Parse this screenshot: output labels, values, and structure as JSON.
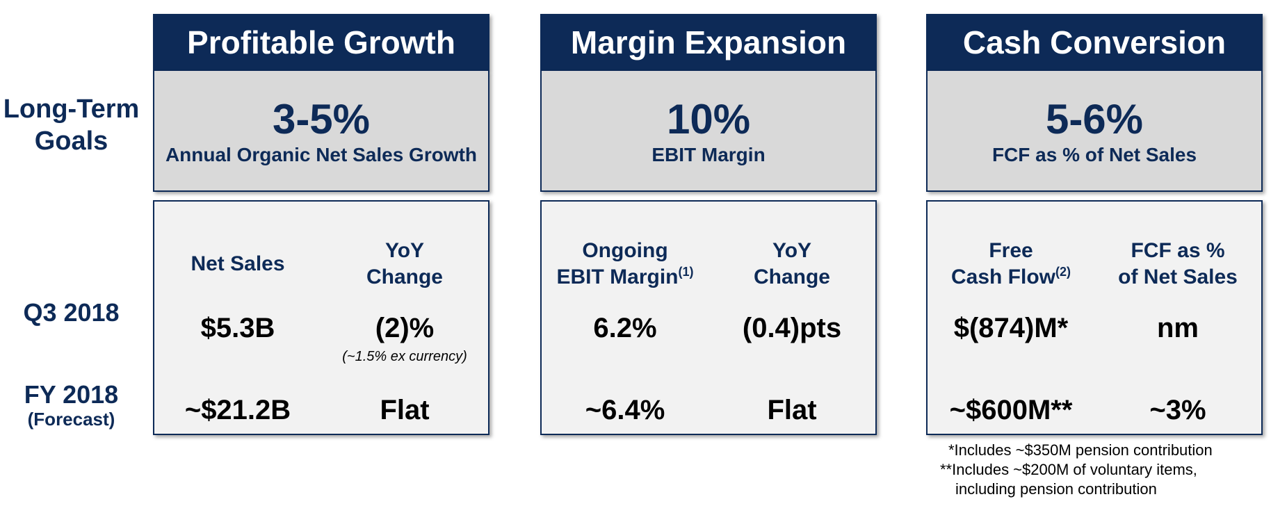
{
  "row_labels": {
    "long_term_line1": "Long-Term",
    "long_term_line2": "Goals",
    "q3": "Q3 2018",
    "fy": "FY 2018",
    "fy_sub": "(Forecast)"
  },
  "pillars": [
    {
      "title": "Profitable Growth",
      "goal_value": "3-5%",
      "goal_desc": "Annual Organic Net Sales Growth",
      "col1_head": [
        "Net Sales"
      ],
      "col1_sup": "",
      "col2_head": [
        "YoY",
        "Change"
      ],
      "col2_sup": "",
      "q3_col1": "$5.3B",
      "q3_col2": "(2)%",
      "q3_col2_note": "(~1.5% ex currency)",
      "fy_col1": "~$21.2B",
      "fy_col2": "Flat"
    },
    {
      "title": "Margin Expansion",
      "goal_value": "10%",
      "goal_desc": "EBIT Margin",
      "col1_head": [
        "Ongoing",
        "EBIT Margin"
      ],
      "col1_sup": "(1)",
      "col2_head": [
        "YoY",
        "Change"
      ],
      "col2_sup": "",
      "q3_col1": "6.2%",
      "q3_col2": "(0.4)pts",
      "q3_col2_note": "",
      "fy_col1": "~6.4%",
      "fy_col2": "Flat"
    },
    {
      "title": "Cash Conversion",
      "goal_value": "5-6%",
      "goal_desc": "FCF as % of Net Sales",
      "col1_head": [
        "Free",
        "Cash Flow"
      ],
      "col1_sup": "(2)",
      "col2_head": [
        "FCF as %",
        "of Net Sales"
      ],
      "col2_sup": "",
      "q3_col1": "$(874)M*",
      "q3_col2": "nm",
      "q3_col2_note": "",
      "fy_col1": "~$600M**",
      "fy_col2": "~3%"
    }
  ],
  "footnotes": {
    "note1": "*Includes ~$350M pension contribution",
    "note2_line1": "**Includes ~$200M of voluntary items,",
    "note2_line2": "including pension contribution"
  },
  "colors": {
    "navy": "#0d2a57",
    "goal_bg": "#d9d9d9",
    "metrics_bg": "#f2f2f2"
  }
}
